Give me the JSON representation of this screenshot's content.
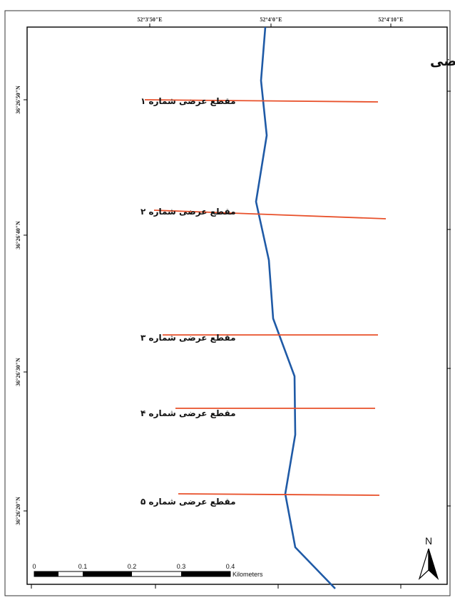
{
  "map": {
    "title": "موقعیت مقاطع عرضی",
    "top_ticks": [
      "52°3'50\"E",
      "52°4'0\"E",
      "52°4'10\"E"
    ],
    "left_ticks": [
      "36°26'50\"N",
      "36°26'40\"N",
      "36°26'30\"N",
      "36°26'20\"N"
    ],
    "sections": [
      {
        "label": "مقطع عرضی شماره ۱"
      },
      {
        "label": "مقطع عرضی شماره ۲"
      },
      {
        "label": "مقطع عرضی شماره ۳"
      },
      {
        "label": "مقطع عرضی شماره ۴"
      },
      {
        "label": "مقطع عرضی شماره ۵"
      }
    ],
    "scale_bar": {
      "ticks": [
        "0",
        "0.1",
        "0.2",
        "0.3",
        "0.4"
      ],
      "unit": "Kilometers"
    },
    "north_arrow": {
      "label": "N",
      "icon": "north-arrow-icon"
    },
    "colors": {
      "river": "#1f5aa6",
      "section_line": "#e8502a",
      "frame": "#000000"
    }
  }
}
